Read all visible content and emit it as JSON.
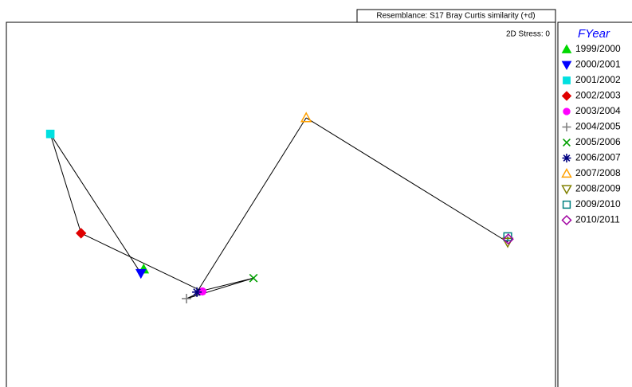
{
  "chart_data": {
    "type": "scatter",
    "title": "Resemblance: S17 Bray Curtis similarity (+d)",
    "annotation": "2D Stress: 0",
    "legend_title": "FYear",
    "connect_points": true,
    "line_color": "#000000",
    "xlim": [
      0,
      100
    ],
    "ylim": [
      0,
      100
    ],
    "series": [
      {
        "name": "1999/2000",
        "color": "#00d800",
        "marker": "triangle",
        "x": [
          25.0
        ],
        "values": [
          27.9
        ]
      },
      {
        "name": "2000/2001",
        "color": "#0000ff",
        "marker": "triangle-down",
        "x": [
          24.5
        ],
        "values": [
          26.7
        ]
      },
      {
        "name": "2001/2002",
        "color": "#00e0e0",
        "marker": "square",
        "x": [
          8.0
        ],
        "values": [
          67.4
        ]
      },
      {
        "name": "2002/2003",
        "color": "#e00000",
        "marker": "diamond",
        "x": [
          13.6
        ],
        "values": [
          38.4
        ]
      },
      {
        "name": "2003/2004",
        "color": "#ff00ff",
        "marker": "circle",
        "x": [
          35.7
        ],
        "values": [
          21.4
        ]
      },
      {
        "name": "2004/2005",
        "color": "#808080",
        "marker": "plus",
        "x": [
          32.8
        ],
        "values": [
          19.3
        ]
      },
      {
        "name": "2005/2006",
        "color": "#00a000",
        "marker": "x",
        "x": [
          45.0
        ],
        "values": [
          25.3
        ]
      },
      {
        "name": "2006/2007",
        "color": "#000080",
        "marker": "asterisk",
        "x": [
          34.7
        ],
        "values": [
          21.2
        ]
      },
      {
        "name": "2007/2008",
        "color": "#ffa000",
        "marker": "triangle-open",
        "x": [
          54.6
        ],
        "values": [
          72.1
        ]
      },
      {
        "name": "2008/2009",
        "color": "#808000",
        "marker": "triangle-down-open",
        "x": [
          91.3
        ],
        "values": [
          35.8
        ]
      },
      {
        "name": "2009/2010",
        "color": "#008080",
        "marker": "square-open",
        "x": [
          91.3
        ],
        "values": [
          37.4
        ]
      },
      {
        "name": "2010/2011",
        "color": "#a000a0",
        "marker": "diamond-open",
        "x": [
          91.4
        ],
        "values": [
          36.7
        ]
      }
    ]
  }
}
